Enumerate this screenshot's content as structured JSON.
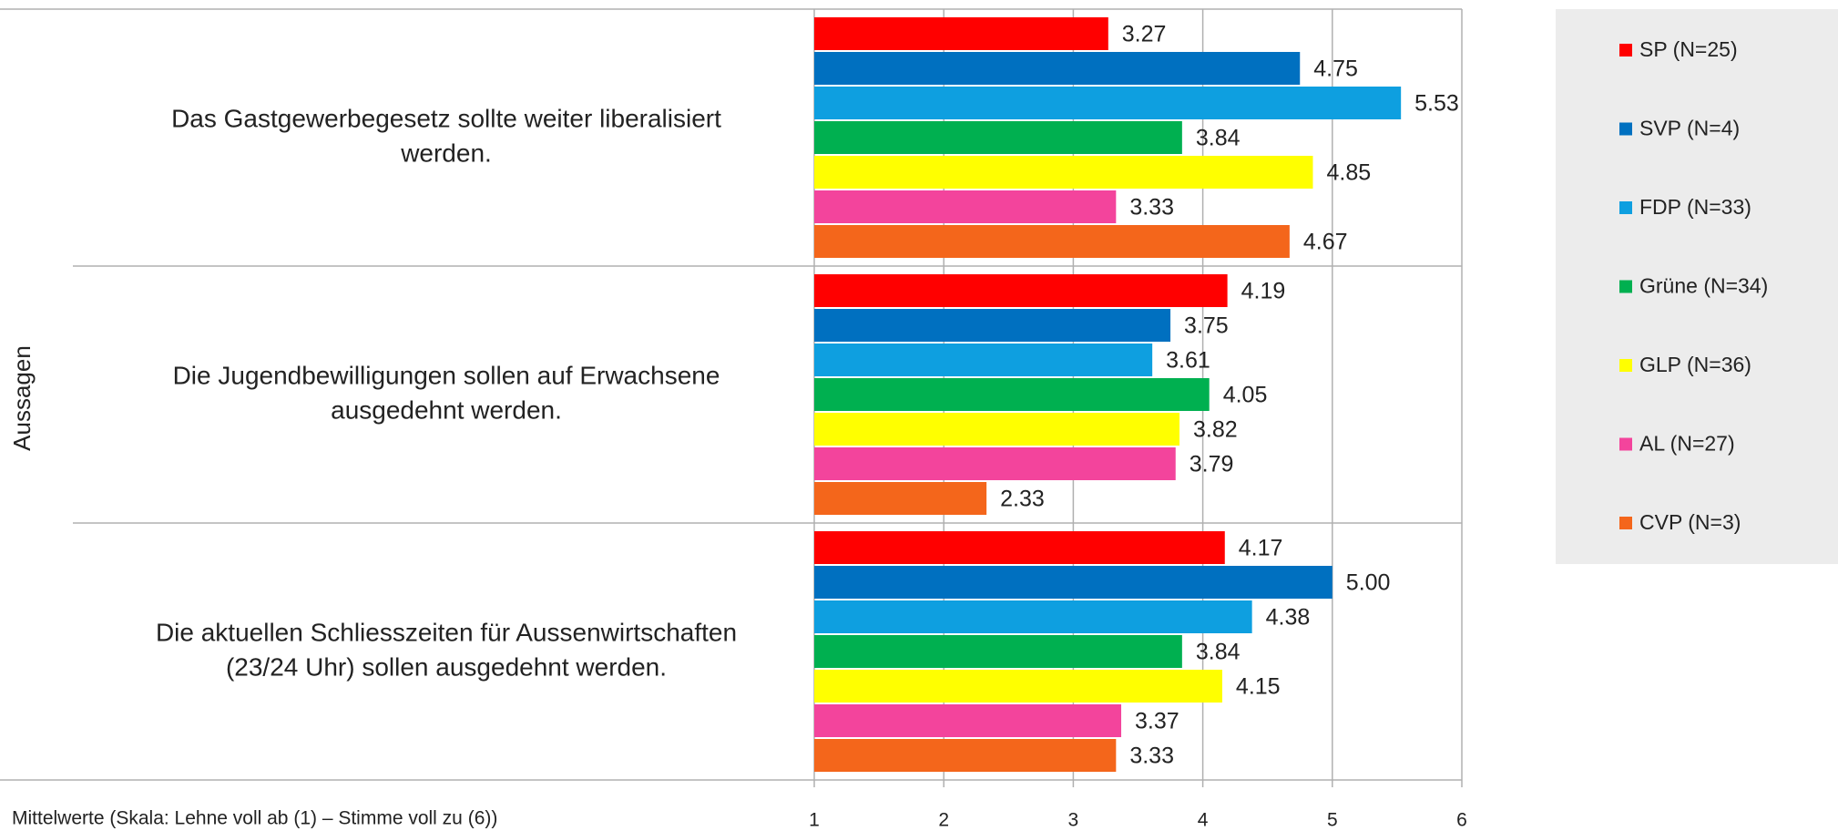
{
  "chart_data": {
    "type": "hbar",
    "y_label": "Aussagen",
    "x_label": "Mittelwerte (Skala: Lehne voll ab (1) – Stimme voll zu (6))",
    "categories": [
      [
        "Das Gastgewerbegesetz sollte weiter liberalisiert",
        "werden."
      ],
      [
        "Die Jugendbewilligungen sollen auf Erwachsene",
        "ausgedehnt werden."
      ],
      [
        "Die aktuellen Schliesszeiten für Aussenwirtschaften",
        "(23/24 Uhr) sollen ausgedehnt werden."
      ]
    ],
    "series": [
      {
        "name": "SP (N=25)",
        "color": "#ff0000",
        "values": [
          3.27,
          4.19,
          4.17
        ],
        "value_labels": [
          "3.27",
          "4.19",
          "4.17"
        ]
      },
      {
        "name": "SVP (N=4)",
        "color": "#0070c0",
        "values": [
          4.75,
          3.75,
          5.0
        ],
        "value_labels": [
          "4.75",
          "3.75",
          "5.00"
        ]
      },
      {
        "name": "FDP (N=33)",
        "color": "#0e9fe0",
        "values": [
          5.53,
          3.61,
          4.38
        ],
        "value_labels": [
          "5.53",
          "3.61",
          "4.38"
        ]
      },
      {
        "name": "Grüne (N=34)",
        "color": "#00b050",
        "values": [
          3.84,
          4.05,
          3.84
        ],
        "value_labels": [
          "3.84",
          "4.05",
          "3.84"
        ]
      },
      {
        "name": "GLP (N=36)",
        "color": "#ffff00",
        "values": [
          4.85,
          3.82,
          4.15
        ],
        "value_labels": [
          "4.85",
          "3.82",
          "4.15"
        ]
      },
      {
        "name": "AL (N=27)",
        "color": "#f3449c",
        "values": [
          3.33,
          3.79,
          3.37
        ],
        "value_labels": [
          "3.33",
          "3.79",
          "3.37"
        ]
      },
      {
        "name": "CVP (N=3)",
        "color": "#f4661b",
        "values": [
          4.67,
          2.33,
          3.33
        ],
        "value_labels": [
          "4.67",
          "2.33",
          "3.33"
        ]
      }
    ],
    "xlim": [
      1,
      6
    ],
    "xticks": [
      1,
      2,
      3,
      4,
      5,
      6
    ],
    "grid": true,
    "legend": "right"
  }
}
